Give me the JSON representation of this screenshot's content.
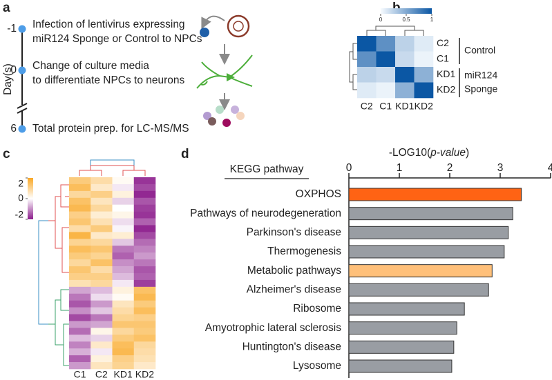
{
  "panel_letters": {
    "a": "a",
    "b": "b",
    "c": "c",
    "d": "d"
  },
  "panel_a": {
    "axis_label": "Day(s)",
    "events": [
      {
        "day": "-1",
        "lines": [
          "Infection of lentivirus expressing",
          "miR124 Sponge or Control to NPCs"
        ]
      },
      {
        "day": "0",
        "lines": [
          "Change of culture media",
          "to differentiate NPCs to neurons"
        ]
      },
      {
        "day": "6",
        "lines": [
          "Total protein prep. for LC-MS/MS"
        ]
      }
    ]
  },
  "panel_b": {
    "rows": [
      "C2",
      "C1",
      "KD1",
      "KD2"
    ],
    "columns": [
      "C2",
      "C1",
      "KD1",
      "KD2"
    ],
    "matrix": [
      [
        1,
        0.65,
        0.25,
        0.1
      ],
      [
        0.65,
        1,
        0.2,
        0.05
      ],
      [
        0.25,
        0.2,
        1,
        0.45
      ],
      [
        0.1,
        0.05,
        0.45,
        1
      ]
    ],
    "colorbar": {
      "lim": [
        0,
        1
      ],
      "ticks": [
        0,
        0.5,
        1
      ],
      "colorscale": [
        "#f7fbff",
        "#0b57a4"
      ]
    },
    "groups": [
      {
        "lines": [
          "Control"
        ]
      },
      {
        "lines": [
          "miR124",
          "Sponge"
        ]
      }
    ]
  },
  "panel_c": {
    "columns": [
      "C1",
      "C2",
      "KD1",
      "KD2"
    ],
    "matrix": [
      [
        1.2,
        0.8,
        0.1,
        -1.8
      ],
      [
        1.5,
        0.5,
        -0.2,
        -1.6
      ],
      [
        0.9,
        1.1,
        0.3,
        -1.9
      ],
      [
        1.4,
        0.6,
        -0.4,
        -1.5
      ],
      [
        1.6,
        0.9,
        0.0,
        -1.7
      ],
      [
        1.1,
        0.4,
        0.2,
        -1.8
      ],
      [
        1.3,
        0.7,
        -0.3,
        -1.4
      ],
      [
        0.8,
        1.2,
        -0.1,
        -1.9
      ],
      [
        1.7,
        0.5,
        0.4,
        -1.6
      ],
      [
        1.0,
        0.9,
        -0.5,
        -1.3
      ],
      [
        1.5,
        1.3,
        -1.2,
        -1.1
      ],
      [
        1.2,
        1.0,
        -1.4,
        -0.9
      ],
      [
        0.9,
        1.4,
        -1.0,
        -1.2
      ],
      [
        1.3,
        0.8,
        -0.8,
        -1.5
      ],
      [
        1.1,
        1.1,
        -0.6,
        -1.4
      ],
      [
        0.7,
        0.9,
        -0.2,
        -1.7
      ],
      [
        -0.8,
        -0.6,
        0.3,
        1.4
      ],
      [
        -1.2,
        -0.3,
        0.1,
        1.6
      ],
      [
        -1.5,
        -0.9,
        0.6,
        1.2
      ],
      [
        -1.0,
        -0.5,
        0.8,
        1.5
      ],
      [
        -1.6,
        -1.2,
        1.0,
        1.1
      ],
      [
        -0.9,
        -0.8,
        1.3,
        1.3
      ],
      [
        -1.3,
        0.2,
        0.9,
        1.2
      ],
      [
        -0.6,
        -0.4,
        1.2,
        1.4
      ],
      [
        -1.1,
        0.5,
        1.5,
        0.9
      ],
      [
        -0.7,
        -0.2,
        1.6,
        0.8
      ],
      [
        -1.4,
        0.3,
        1.1,
        0.7
      ],
      [
        -0.9,
        0.6,
        1.0,
        0.5
      ]
    ],
    "colorbar": {
      "lim": [
        -2,
        2
      ],
      "ticks": [
        2,
        0,
        -2
      ],
      "colorscale": [
        "#8c1d8c",
        "#ffffff",
        "#f9a825"
      ]
    }
  },
  "chart_data": {
    "type": "bar",
    "orientation": "horizontal",
    "x_label": {
      "prefix": "-LOG10(",
      "italic": "p-value",
      "suffix": ")"
    },
    "category_header": "KEGG pathway",
    "categories": [
      "OXPHOS",
      "Pathways of neurodegeneration",
      "Parkinson's disease",
      "Thermogenesis",
      "Metabolic pathways",
      "Alzheimer's disease",
      "Ribosome",
      "Amyotrophic lateral sclerosis",
      "Huntington's disease",
      "Lysosome"
    ],
    "values": [
      3.42,
      3.25,
      3.16,
      3.08,
      2.84,
      2.77,
      2.29,
      2.14,
      2.08,
      2.04
    ],
    "colors": [
      "#ff6314",
      "#999da3",
      "#999da3",
      "#999da3",
      "#ffc07a",
      "#999da3",
      "#999da3",
      "#999da3",
      "#999da3",
      "#999da3"
    ],
    "xlim": [
      0,
      4
    ],
    "xticks": [
      0,
      1,
      2,
      3,
      4
    ]
  }
}
